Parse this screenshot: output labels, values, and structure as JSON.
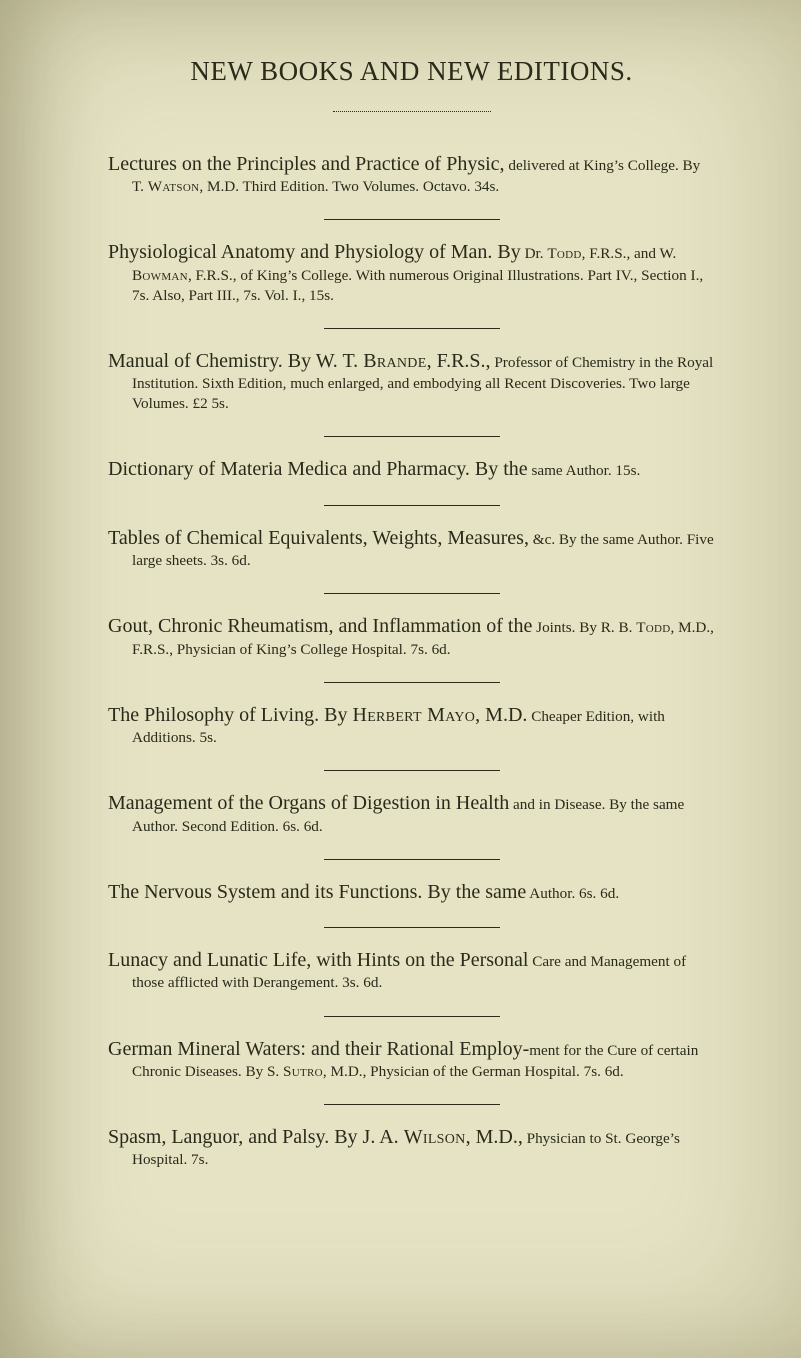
{
  "title": "NEW BOOKS AND NEW EDITIONS.",
  "entries": [
    {
      "lead": "Lectures on the Principles and Practice of Physic,",
      "rest": " delivered at King’s College. By T. ",
      "sc1": "Watson",
      "rest2": ", M.D. Third Edition. Two Volumes. Octavo. 34s."
    },
    {
      "lead": "Physiological Anatomy and Physiology of Man. By",
      "rest": " Dr. ",
      "sc1": "Todd",
      "rest2": ", F.R.S., and W. ",
      "sc2": "Bowman",
      "rest3": ", F.R.S., of King’s College. With numerous Original Illustrations. Part IV., Section I., 7s. Also, Part III., 7s. Vol. I., 15s."
    },
    {
      "lead": "Manual of Chemistry. By W. T. ",
      "leadSc": "Brande",
      "lead2": ", F.R.S.,",
      "rest": " Professor of Chemistry in the Royal Institution. Sixth Edition, much enlarged, and embodying all Recent Discoveries. Two large Volumes. £2 5s."
    },
    {
      "lead": "Dictionary of Materia Medica and Pharmacy. By the",
      "rest": " same Author. 15s."
    },
    {
      "lead": "Tables of Chemical Equivalents, Weights, Measures,",
      "rest": " &c. By the same Author. Five large sheets. 3s. 6d."
    },
    {
      "lead": "Gout, Chronic Rheumatism, and Inflammation of the",
      "rest": " Joints. By R. B. ",
      "sc1": "Todd",
      "rest2": ", M.D., F.R.S., Physician of King’s College Hospital. 7s. 6d."
    },
    {
      "lead": "The Philosophy of Living. By ",
      "leadSc": "Herbert Mayo",
      "lead2": ", M.D.",
      "rest": " Cheaper Edition, with Additions. 5s."
    },
    {
      "lead": "Management of the Organs of Digestion in Health",
      "rest": " and in Disease. By the same Author. Second Edition. 6s. 6d."
    },
    {
      "lead": "The Nervous System and its Functions. By the same",
      "rest": " Author. 6s. 6d."
    },
    {
      "lead": "Lunacy and Lunatic Life, with Hints on the Personal",
      "rest": " Care and Management of those afflicted with Derangement. 3s. 6d."
    },
    {
      "lead": "German Mineral Waters: and their Rational Employ-",
      "rest": "ment for the Cure of certain Chronic Diseases. By S. ",
      "sc1": "Sutro",
      "rest2": ", M.D., Physician of the German Hospital. 7s. 6d."
    },
    {
      "lead": "Spasm, Languor, and Palsy. By J. A. ",
      "leadSc": "Wilson",
      "lead2": ", M.D.,",
      "rest": " Physician to St. George’s Hospital. 7s."
    }
  ]
}
